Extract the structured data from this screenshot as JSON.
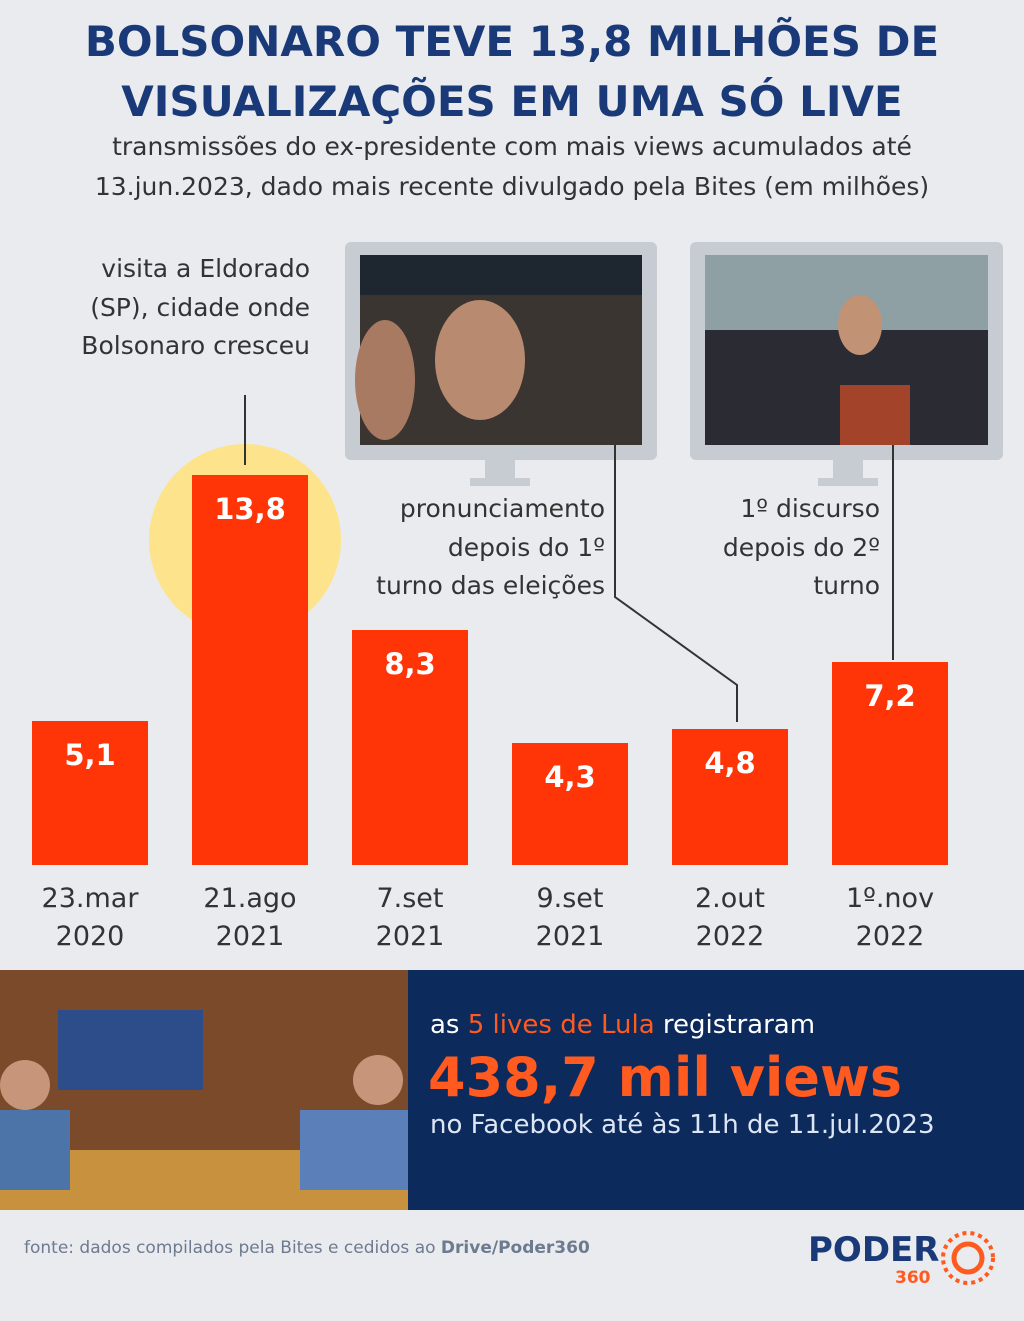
{
  "chart_data": {
    "type": "bar",
    "title": [
      "BOLSONARO TEVE 13,8 MILHÕES DE",
      "VISUALIZAÇÕES EM UMA SÓ LIVE"
    ],
    "subtitle": [
      "transmissões do ex-presidente com mais views acumulados até",
      "13.jun.2023, dado mais recente divulgado pela Bites (em milhões)"
    ],
    "categories": [
      [
        "23.mar",
        "2020"
      ],
      [
        "21.ago",
        "2021"
      ],
      [
        "7.set",
        "2021"
      ],
      [
        "9.set",
        "2021"
      ],
      [
        "2.out",
        "2022"
      ],
      [
        "1º.nov",
        "2022"
      ]
    ],
    "values": [
      5.1,
      13.8,
      8.3,
      4.3,
      4.8,
      7.2
    ],
    "value_labels": [
      "5,1",
      "13,8",
      "8,3",
      "4,3",
      "4,8",
      "7,2"
    ],
    "color": "#ff3407",
    "annotations": [
      [
        "visita a Eldorado",
        "(SP), cidade onde",
        "Bolsonaro cresceu"
      ],
      [
        "pronunciamento",
        "depois do 1º",
        "turno das eleições"
      ],
      [
        "1º discurso",
        "depois do 2º",
        "turno"
      ]
    ]
  },
  "lula_panel": {
    "intro_pre": "as",
    "intro_highlight": "5 lives de Lula",
    "intro_post": "registraram",
    "headline": "438,7 mil views",
    "detail": "no Facebook até às 11h de 11.jul.2023"
  },
  "source": {
    "text": "fonte: dados compilados pela Bites e cedidos ao",
    "bold": "Drive/Poder360"
  },
  "logo": {
    "name": "PODER",
    "number": "360"
  }
}
